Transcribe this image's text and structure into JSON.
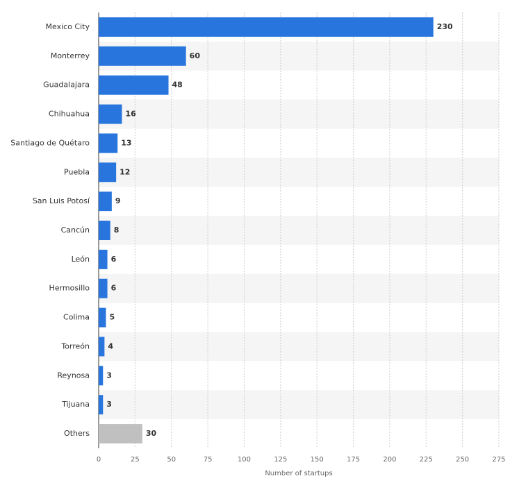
{
  "chart_data": {
    "type": "bar",
    "orientation": "horizontal",
    "categories": [
      "Mexico City",
      "Monterrey",
      "Guadalajara",
      "Chihuahua",
      "Santiago de Quétaro",
      "Puebla",
      "San Luis Potosí",
      "Cancún",
      "León",
      "Hermosillo",
      "Colima",
      "Torreón",
      "Reynosa",
      "Tijuana",
      "Others"
    ],
    "values": [
      230,
      60,
      48,
      16,
      13,
      12,
      9,
      8,
      6,
      6,
      5,
      4,
      3,
      3,
      30
    ],
    "colors": [
      "#2876dd",
      "#2876dd",
      "#2876dd",
      "#2876dd",
      "#2876dd",
      "#2876dd",
      "#2876dd",
      "#2876dd",
      "#2876dd",
      "#2876dd",
      "#2876dd",
      "#2876dd",
      "#2876dd",
      "#2876dd",
      "#c0c0c0"
    ],
    "xlabel": "Number of startups",
    "xlim": [
      0,
      275
    ],
    "xticks": [
      0,
      25,
      50,
      75,
      100,
      125,
      150,
      175,
      200,
      225,
      250,
      275
    ],
    "grid": true
  }
}
